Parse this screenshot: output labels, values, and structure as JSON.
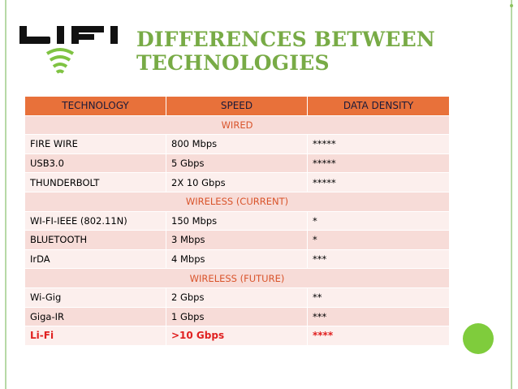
{
  "logo": {
    "text": "LIFI"
  },
  "title": {
    "line1": "DIFFERENCES BETWEEN",
    "line2": "TECHNOLOGIES"
  },
  "table": {
    "headers": [
      "TECHNOLOGY",
      "SPEED",
      "DATA DENSITY"
    ],
    "sections": [
      {
        "label": "WIRED",
        "rows": [
          [
            "FIRE WIRE",
            "800 Mbps",
            "*****"
          ],
          [
            "USB3.0",
            "5 Gbps",
            "*****"
          ],
          [
            "THUNDERBOLT",
            "2X 10 Gbps",
            "*****"
          ]
        ]
      },
      {
        "label": "WIRELESS (CURRENT)",
        "rows": [
          [
            "WI-FI-IEEE (802.11N)",
            "150 Mbps",
            "*"
          ],
          [
            "BLUETOOTH",
            "3 Mbps",
            "*"
          ],
          [
            "IrDA",
            "4 Mbps",
            "***"
          ]
        ]
      },
      {
        "label": "WIRELESS (FUTURE)",
        "rows": [
          [
            "Wi-Gig",
            "2 Gbps",
            "**"
          ],
          [
            "Giga-IR",
            "1 Gbps",
            "***"
          ],
          [
            "Li-Fi",
            ">10 Gbps",
            "****"
          ]
        ]
      }
    ]
  },
  "colors": {
    "title": "#78ab46",
    "header": "#e8713a",
    "section_text": "#d9542b",
    "highlight": "#e02020",
    "accent_circle": "#7fcc3c"
  }
}
